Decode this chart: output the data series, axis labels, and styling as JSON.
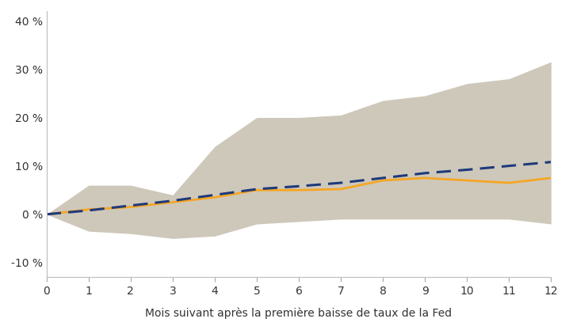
{
  "x": [
    0,
    1,
    2,
    3,
    4,
    5,
    6,
    7,
    8,
    9,
    10,
    11,
    12
  ],
  "orange_line": [
    0.0,
    1.0,
    1.5,
    2.5,
    3.5,
    5.0,
    5.0,
    5.2,
    7.0,
    7.5,
    7.0,
    6.5,
    7.5
  ],
  "blue_dashed": [
    0.0,
    0.8,
    1.8,
    2.8,
    4.0,
    5.2,
    5.8,
    6.5,
    7.5,
    8.5,
    9.2,
    10.0,
    10.8
  ],
  "upper_band": [
    0.0,
    6.0,
    6.0,
    4.0,
    14.0,
    20.0,
    20.0,
    20.5,
    23.5,
    24.5,
    27.0,
    28.0,
    31.5
  ],
  "lower_band": [
    0.0,
    -3.5,
    -4.0,
    -5.0,
    -4.5,
    -2.0,
    -1.5,
    -1.0,
    -1.0,
    -1.0,
    -1.0,
    -1.0,
    -2.0
  ],
  "band_color": "#cec8bb",
  "orange_color": "#f5a623",
  "blue_color": "#1f3a7a",
  "xlabel": "Mois suivant après la première baisse de taux de la Fed",
  "ylim": [
    -13,
    42
  ],
  "yticks": [
    -10,
    0,
    10,
    20,
    30,
    40
  ],
  "xticks": [
    0,
    1,
    2,
    3,
    4,
    5,
    6,
    7,
    8,
    9,
    10,
    11,
    12
  ],
  "background_color": "#ffffff"
}
